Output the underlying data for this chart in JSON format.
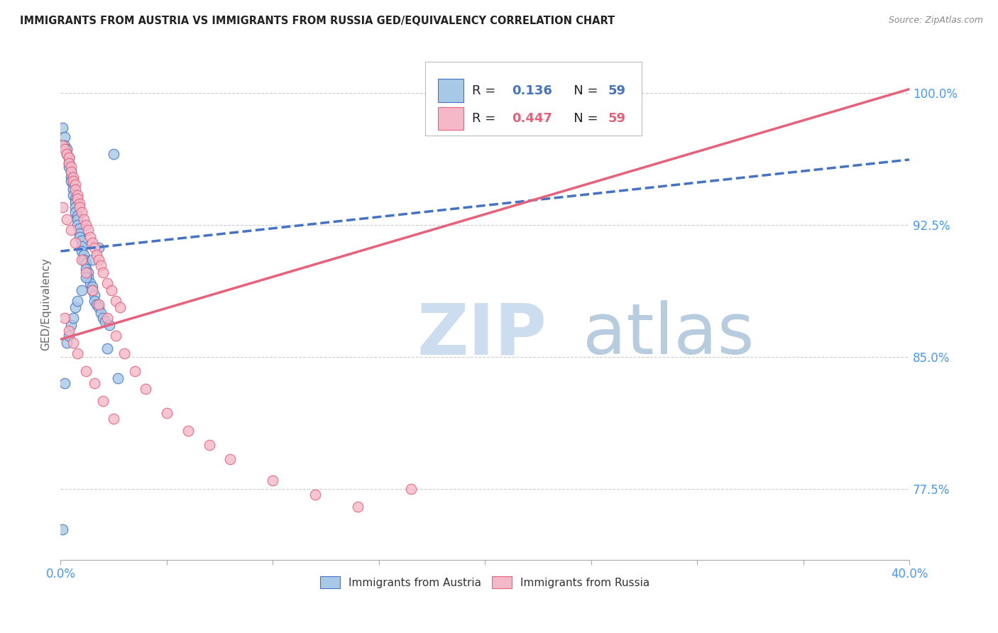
{
  "title": "IMMIGRANTS FROM AUSTRIA VS IMMIGRANTS FROM RUSSIA GED/EQUIVALENCY CORRELATION CHART",
  "source": "Source: ZipAtlas.com",
  "ylabel_label": "GED/Equivalency",
  "ytick_labels": [
    "100.0%",
    "92.5%",
    "85.0%",
    "77.5%"
  ],
  "ytick_values": [
    1.0,
    0.925,
    0.85,
    0.775
  ],
  "xlim": [
    0.0,
    0.4
  ],
  "ylim": [
    0.735,
    1.025
  ],
  "legend_austria": "Immigrants from Austria",
  "legend_russia": "Immigrants from Russia",
  "r_austria": "0.136",
  "n_austria": "59",
  "r_russia": "0.447",
  "n_russia": "59",
  "austria_color": "#a8c8e8",
  "russia_color": "#f5b8c8",
  "austria_line_color": "#4472c4",
  "russia_line_color": "#e8607a",
  "title_color": "#222222",
  "axis_label_color": "#4499ff",
  "watermark_color_zip": "#c8ddf0",
  "watermark_color_atlas": "#b0cce8",
  "background": "#ffffff",
  "austria_x": [
    0.001,
    0.002,
    0.002,
    0.003,
    0.003,
    0.004,
    0.004,
    0.004,
    0.005,
    0.005,
    0.005,
    0.006,
    0.006,
    0.006,
    0.007,
    0.007,
    0.007,
    0.007,
    0.008,
    0.008,
    0.008,
    0.009,
    0.009,
    0.009,
    0.01,
    0.01,
    0.01,
    0.011,
    0.011,
    0.012,
    0.012,
    0.013,
    0.013,
    0.014,
    0.015,
    0.015,
    0.016,
    0.016,
    0.017,
    0.018,
    0.019,
    0.02,
    0.021,
    0.023,
    0.025,
    0.001,
    0.002,
    0.003,
    0.004,
    0.005,
    0.006,
    0.007,
    0.008,
    0.01,
    0.012,
    0.015,
    0.018,
    0.022,
    0.027
  ],
  "austria_y": [
    0.98,
    0.975,
    0.97,
    0.968,
    0.965,
    0.963,
    0.96,
    0.958,
    0.955,
    0.952,
    0.95,
    0.948,
    0.945,
    0.942,
    0.94,
    0.938,
    0.935,
    0.932,
    0.93,
    0.928,
    0.925,
    0.923,
    0.92,
    0.918,
    0.916,
    0.913,
    0.91,
    0.908,
    0.905,
    0.903,
    0.9,
    0.898,
    0.895,
    0.892,
    0.89,
    0.888,
    0.885,
    0.882,
    0.88,
    0.878,
    0.875,
    0.872,
    0.87,
    0.868,
    0.965,
    0.752,
    0.835,
    0.858,
    0.862,
    0.868,
    0.872,
    0.878,
    0.882,
    0.888,
    0.895,
    0.905,
    0.912,
    0.855,
    0.838
  ],
  "russia_x": [
    0.001,
    0.002,
    0.003,
    0.004,
    0.004,
    0.005,
    0.005,
    0.006,
    0.006,
    0.007,
    0.007,
    0.008,
    0.008,
    0.009,
    0.009,
    0.01,
    0.011,
    0.012,
    0.013,
    0.014,
    0.015,
    0.016,
    0.017,
    0.018,
    0.019,
    0.02,
    0.022,
    0.024,
    0.026,
    0.028,
    0.001,
    0.003,
    0.005,
    0.007,
    0.01,
    0.012,
    0.015,
    0.018,
    0.022,
    0.026,
    0.03,
    0.035,
    0.04,
    0.05,
    0.06,
    0.07,
    0.08,
    0.1,
    0.12,
    0.14,
    0.002,
    0.004,
    0.006,
    0.008,
    0.012,
    0.016,
    0.02,
    0.025,
    0.165
  ],
  "russia_y": [
    0.97,
    0.968,
    0.965,
    0.963,
    0.96,
    0.958,
    0.955,
    0.952,
    0.95,
    0.948,
    0.945,
    0.942,
    0.94,
    0.937,
    0.935,
    0.932,
    0.928,
    0.925,
    0.922,
    0.918,
    0.915,
    0.912,
    0.908,
    0.905,
    0.902,
    0.898,
    0.892,
    0.888,
    0.882,
    0.878,
    0.935,
    0.928,
    0.922,
    0.915,
    0.905,
    0.898,
    0.888,
    0.88,
    0.872,
    0.862,
    0.852,
    0.842,
    0.832,
    0.818,
    0.808,
    0.8,
    0.792,
    0.78,
    0.772,
    0.765,
    0.872,
    0.865,
    0.858,
    0.852,
    0.842,
    0.835,
    0.825,
    0.815,
    0.775
  ],
  "austria_line": {
    "x0": 0.0,
    "x1": 0.4,
    "y0": 0.91,
    "y1": 0.962
  },
  "russia_line": {
    "x0": 0.0,
    "x1": 0.4,
    "y0": 0.86,
    "y1": 1.002
  },
  "xtick_positions": [
    0.0,
    0.05,
    0.1,
    0.15,
    0.2,
    0.25,
    0.3,
    0.35,
    0.4
  ]
}
